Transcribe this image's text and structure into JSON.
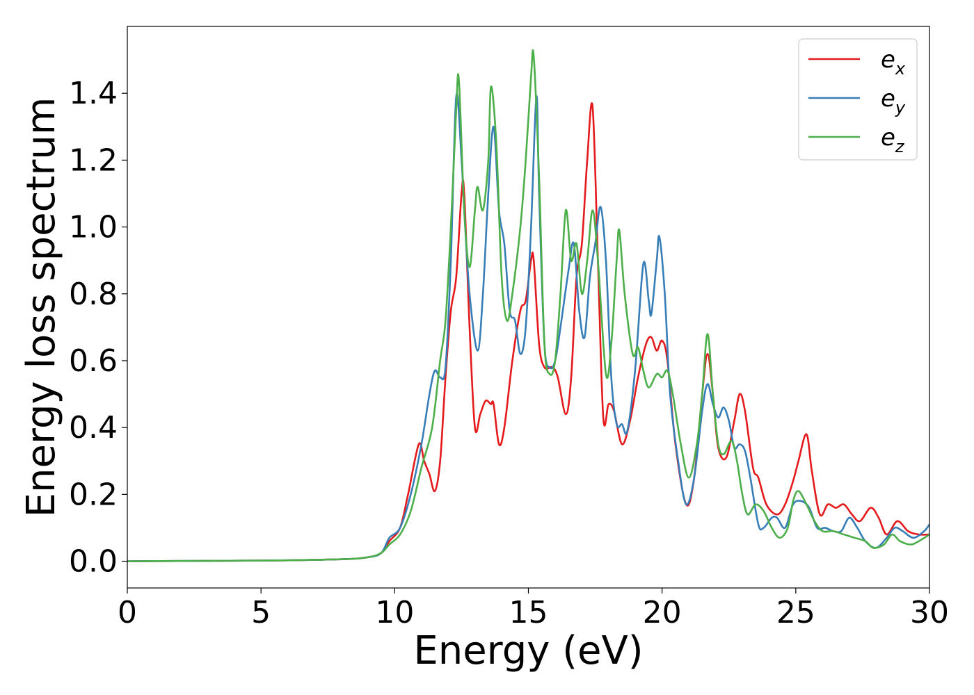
{
  "chart_data": {
    "type": "line",
    "xlabel": "Energy (eV)",
    "ylabel": "Energy loss spectrum",
    "xlim": [
      0,
      30
    ],
    "ylim": [
      -0.08,
      1.6
    ],
    "xticks": [
      0,
      5,
      10,
      15,
      20,
      25,
      30
    ],
    "xtick_labels": [
      "0",
      "5",
      "10",
      "15",
      "20",
      "25",
      "30"
    ],
    "yticks": [
      0.0,
      0.2,
      0.4,
      0.6,
      0.8,
      1.0,
      1.2,
      1.4
    ],
    "ytick_labels": [
      "0.0",
      "0.2",
      "0.4",
      "0.6",
      "0.8",
      "1.0",
      "1.2",
      "1.4"
    ],
    "grid": false,
    "legend": {
      "position": "top-right"
    },
    "series": [
      {
        "name": "e",
        "subscript": "x",
        "color": "#e41a1c",
        "points": [
          [
            0,
            0.0
          ],
          [
            5,
            0.002
          ],
          [
            8,
            0.006
          ],
          [
            9,
            0.012
          ],
          [
            9.5,
            0.025
          ],
          [
            9.8,
            0.06
          ],
          [
            10.2,
            0.1
          ],
          [
            10.5,
            0.2
          ],
          [
            10.9,
            0.35
          ],
          [
            11.1,
            0.3
          ],
          [
            11.3,
            0.26
          ],
          [
            11.5,
            0.21
          ],
          [
            11.7,
            0.3
          ],
          [
            11.9,
            0.55
          ],
          [
            12.1,
            0.75
          ],
          [
            12.3,
            0.85
          ],
          [
            12.5,
            1.1
          ],
          [
            12.6,
            1.1
          ],
          [
            12.8,
            0.7
          ],
          [
            13.0,
            0.4
          ],
          [
            13.2,
            0.44
          ],
          [
            13.4,
            0.48
          ],
          [
            13.6,
            0.47
          ],
          [
            13.7,
            0.47
          ],
          [
            13.9,
            0.35
          ],
          [
            14.1,
            0.4
          ],
          [
            14.4,
            0.6
          ],
          [
            14.7,
            0.75
          ],
          [
            14.9,
            0.78
          ],
          [
            15.1,
            0.9
          ],
          [
            15.2,
            0.9
          ],
          [
            15.4,
            0.65
          ],
          [
            15.6,
            0.58
          ],
          [
            15.9,
            0.58
          ],
          [
            16.1,
            0.55
          ],
          [
            16.4,
            0.44
          ],
          [
            16.6,
            0.55
          ],
          [
            16.8,
            0.85
          ],
          [
            17.0,
            0.95
          ],
          [
            17.2,
            1.2
          ],
          [
            17.4,
            1.36
          ],
          [
            17.6,
            0.9
          ],
          [
            17.8,
            0.43
          ],
          [
            18.0,
            0.47
          ],
          [
            18.2,
            0.45
          ],
          [
            18.5,
            0.35
          ],
          [
            18.8,
            0.42
          ],
          [
            19.1,
            0.55
          ],
          [
            19.4,
            0.65
          ],
          [
            19.6,
            0.67
          ],
          [
            19.8,
            0.63
          ],
          [
            20.0,
            0.66
          ],
          [
            20.2,
            0.6
          ],
          [
            20.5,
            0.35
          ],
          [
            20.9,
            0.17
          ],
          [
            21.2,
            0.25
          ],
          [
            21.5,
            0.5
          ],
          [
            21.7,
            0.62
          ],
          [
            21.9,
            0.5
          ],
          [
            22.1,
            0.34
          ],
          [
            22.4,
            0.31
          ],
          [
            22.7,
            0.42
          ],
          [
            22.9,
            0.5
          ],
          [
            23.1,
            0.45
          ],
          [
            23.4,
            0.28
          ],
          [
            23.6,
            0.25
          ],
          [
            23.9,
            0.17
          ],
          [
            24.3,
            0.14
          ],
          [
            24.6,
            0.17
          ],
          [
            24.9,
            0.24
          ],
          [
            25.1,
            0.3
          ],
          [
            25.4,
            0.38
          ],
          [
            25.6,
            0.27
          ],
          [
            25.9,
            0.14
          ],
          [
            26.2,
            0.17
          ],
          [
            26.5,
            0.16
          ],
          [
            26.8,
            0.17
          ],
          [
            27.1,
            0.14
          ],
          [
            27.4,
            0.12
          ],
          [
            27.8,
            0.16
          ],
          [
            28.1,
            0.13
          ],
          [
            28.4,
            0.08
          ],
          [
            28.8,
            0.12
          ],
          [
            29.2,
            0.09
          ],
          [
            29.6,
            0.08
          ],
          [
            30,
            0.08
          ]
        ]
      },
      {
        "name": "e",
        "subscript": "y",
        "color": "#377eb8",
        "points": [
          [
            0,
            0.0
          ],
          [
            5,
            0.002
          ],
          [
            8,
            0.006
          ],
          [
            9,
            0.012
          ],
          [
            9.5,
            0.025
          ],
          [
            9.8,
            0.07
          ],
          [
            10.2,
            0.1
          ],
          [
            10.6,
            0.2
          ],
          [
            11.0,
            0.35
          ],
          [
            11.3,
            0.5
          ],
          [
            11.5,
            0.57
          ],
          [
            11.7,
            0.55
          ],
          [
            11.9,
            0.58
          ],
          [
            12.1,
            0.9
          ],
          [
            12.3,
            1.39
          ],
          [
            12.5,
            1.2
          ],
          [
            12.6,
            1.05
          ],
          [
            12.8,
            0.8
          ],
          [
            13.1,
            0.63
          ],
          [
            13.3,
            0.8
          ],
          [
            13.5,
            1.1
          ],
          [
            13.7,
            1.3
          ],
          [
            13.9,
            1.05
          ],
          [
            14.1,
            0.95
          ],
          [
            14.3,
            0.75
          ],
          [
            14.5,
            0.72
          ],
          [
            14.7,
            0.62
          ],
          [
            14.9,
            0.7
          ],
          [
            15.1,
            1.0
          ],
          [
            15.3,
            1.39
          ],
          [
            15.4,
            1.1
          ],
          [
            15.6,
            0.65
          ],
          [
            15.8,
            0.58
          ],
          [
            16.0,
            0.6
          ],
          [
            16.2,
            0.7
          ],
          [
            16.5,
            0.87
          ],
          [
            16.7,
            0.95
          ],
          [
            16.9,
            0.75
          ],
          [
            17.1,
            0.67
          ],
          [
            17.3,
            0.85
          ],
          [
            17.5,
            0.95
          ],
          [
            17.7,
            1.06
          ],
          [
            17.9,
            0.9
          ],
          [
            18.1,
            0.55
          ],
          [
            18.3,
            0.41
          ],
          [
            18.5,
            0.41
          ],
          [
            18.7,
            0.39
          ],
          [
            19.0,
            0.58
          ],
          [
            19.3,
            0.89
          ],
          [
            19.5,
            0.78
          ],
          [
            19.6,
            0.74
          ],
          [
            19.8,
            0.9
          ],
          [
            19.9,
            0.97
          ],
          [
            20.1,
            0.8
          ],
          [
            20.3,
            0.5
          ],
          [
            20.6,
            0.3
          ],
          [
            20.9,
            0.17
          ],
          [
            21.2,
            0.25
          ],
          [
            21.5,
            0.45
          ],
          [
            21.7,
            0.53
          ],
          [
            21.9,
            0.47
          ],
          [
            22.1,
            0.43
          ],
          [
            22.3,
            0.46
          ],
          [
            22.5,
            0.42
          ],
          [
            22.7,
            0.34
          ],
          [
            22.9,
            0.35
          ],
          [
            23.1,
            0.33
          ],
          [
            23.3,
            0.25
          ],
          [
            23.6,
            0.11
          ],
          [
            23.8,
            0.1
          ],
          [
            24.1,
            0.13
          ],
          [
            24.3,
            0.13
          ],
          [
            24.6,
            0.1
          ],
          [
            24.9,
            0.17
          ],
          [
            25.2,
            0.18
          ],
          [
            25.5,
            0.16
          ],
          [
            25.8,
            0.1
          ],
          [
            26.1,
            0.1
          ],
          [
            26.4,
            0.09
          ],
          [
            26.7,
            0.09
          ],
          [
            27.0,
            0.13
          ],
          [
            27.3,
            0.1
          ],
          [
            27.6,
            0.06
          ],
          [
            28.0,
            0.04
          ],
          [
            28.4,
            0.07
          ],
          [
            28.7,
            0.1
          ],
          [
            29.0,
            0.09
          ],
          [
            29.4,
            0.07
          ],
          [
            29.8,
            0.09
          ],
          [
            30,
            0.11
          ]
        ]
      },
      {
        "name": "e",
        "subscript": "z",
        "color": "#4daf4a",
        "points": [
          [
            0,
            0.0
          ],
          [
            5,
            0.002
          ],
          [
            8,
            0.006
          ],
          [
            9,
            0.012
          ],
          [
            9.5,
            0.025
          ],
          [
            9.8,
            0.05
          ],
          [
            10.2,
            0.08
          ],
          [
            10.6,
            0.15
          ],
          [
            11.0,
            0.28
          ],
          [
            11.4,
            0.4
          ],
          [
            11.7,
            0.6
          ],
          [
            11.9,
            0.72
          ],
          [
            12.1,
            1.0
          ],
          [
            12.3,
            1.35
          ],
          [
            12.4,
            1.44
          ],
          [
            12.6,
            1.05
          ],
          [
            12.8,
            0.88
          ],
          [
            13.0,
            1.05
          ],
          [
            13.1,
            1.12
          ],
          [
            13.3,
            1.05
          ],
          [
            13.5,
            1.2
          ],
          [
            13.6,
            1.42
          ],
          [
            13.8,
            1.25
          ],
          [
            14.0,
            0.85
          ],
          [
            14.2,
            0.72
          ],
          [
            14.4,
            0.8
          ],
          [
            14.7,
            1.0
          ],
          [
            14.9,
            1.2
          ],
          [
            15.1,
            1.45
          ],
          [
            15.2,
            1.51
          ],
          [
            15.4,
            1.15
          ],
          [
            15.6,
            0.65
          ],
          [
            15.8,
            0.56
          ],
          [
            16.0,
            0.6
          ],
          [
            16.2,
            0.8
          ],
          [
            16.4,
            1.05
          ],
          [
            16.6,
            0.9
          ],
          [
            16.8,
            0.95
          ],
          [
            17.0,
            0.8
          ],
          [
            17.2,
            0.9
          ],
          [
            17.4,
            1.05
          ],
          [
            17.6,
            0.9
          ],
          [
            17.9,
            0.56
          ],
          [
            18.1,
            0.65
          ],
          [
            18.3,
            0.9
          ],
          [
            18.4,
            0.99
          ],
          [
            18.6,
            0.8
          ],
          [
            18.9,
            0.62
          ],
          [
            19.1,
            0.64
          ],
          [
            19.3,
            0.57
          ],
          [
            19.5,
            0.52
          ],
          [
            19.8,
            0.56
          ],
          [
            20.0,
            0.55
          ],
          [
            20.2,
            0.57
          ],
          [
            20.4,
            0.5
          ],
          [
            20.7,
            0.35
          ],
          [
            21.0,
            0.25
          ],
          [
            21.3,
            0.35
          ],
          [
            21.5,
            0.5
          ],
          [
            21.7,
            0.68
          ],
          [
            21.9,
            0.5
          ],
          [
            22.1,
            0.35
          ],
          [
            22.3,
            0.32
          ],
          [
            22.6,
            0.36
          ],
          [
            22.8,
            0.3
          ],
          [
            23.0,
            0.2
          ],
          [
            23.2,
            0.14
          ],
          [
            23.5,
            0.17
          ],
          [
            23.8,
            0.15
          ],
          [
            24.1,
            0.1
          ],
          [
            24.4,
            0.07
          ],
          [
            24.7,
            0.1
          ],
          [
            24.9,
            0.18
          ],
          [
            25.1,
            0.21
          ],
          [
            25.4,
            0.17
          ],
          [
            25.7,
            0.12
          ],
          [
            26.0,
            0.09
          ],
          [
            26.4,
            0.09
          ],
          [
            26.8,
            0.08
          ],
          [
            27.2,
            0.07
          ],
          [
            27.6,
            0.06
          ],
          [
            27.9,
            0.04
          ],
          [
            28.3,
            0.05
          ],
          [
            28.6,
            0.08
          ],
          [
            28.9,
            0.06
          ],
          [
            29.3,
            0.05
          ],
          [
            29.6,
            0.06
          ],
          [
            30,
            0.08
          ]
        ]
      }
    ]
  }
}
